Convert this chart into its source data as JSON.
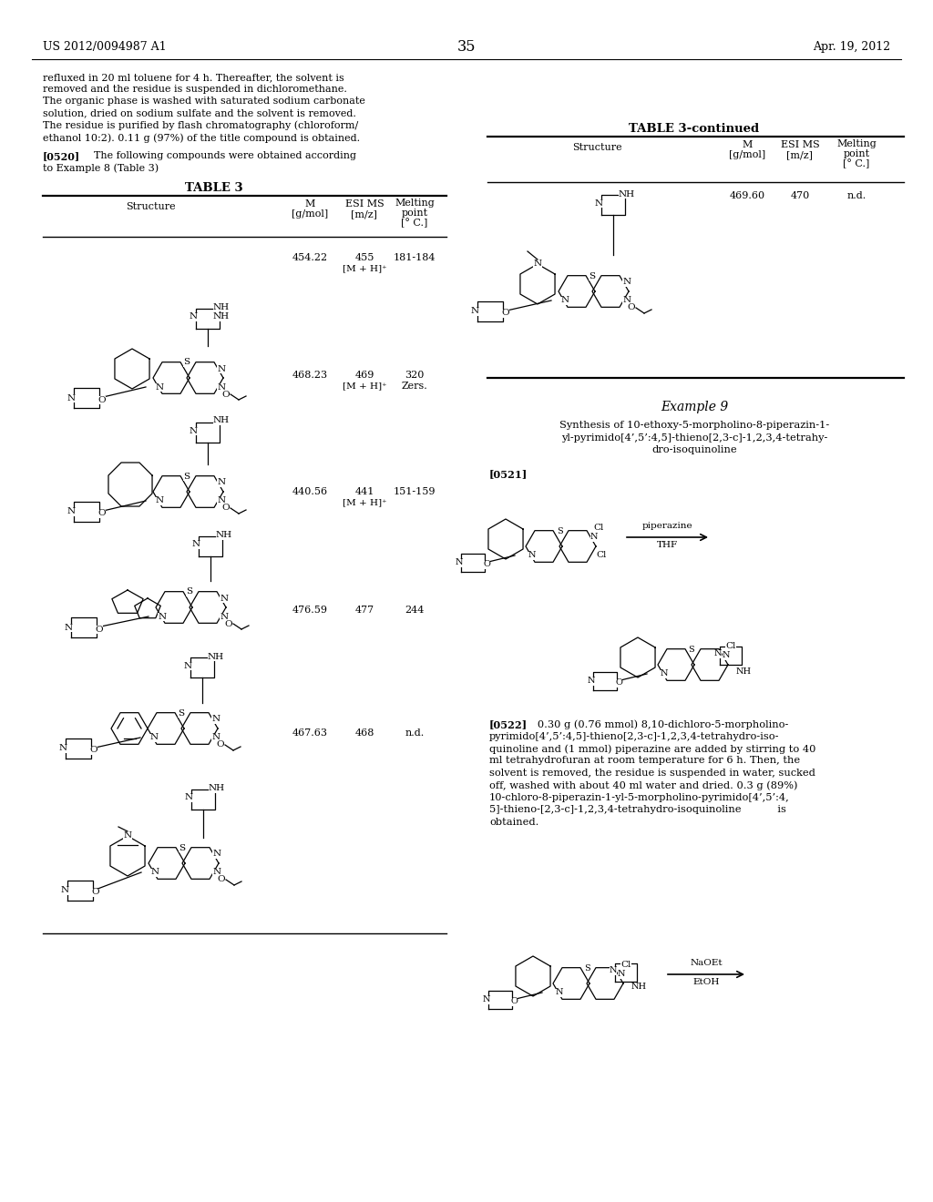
{
  "bg": "#ffffff",
  "header_left": "US 2012/0094987 A1",
  "header_center": "35",
  "header_right": "Apr. 19, 2012",
  "intro_lines": [
    "refluxed in 20 ml toluene for 4 h. Thereafter, the solvent is",
    "removed and the residue is suspended in dichloromethane.",
    "The organic phase is washed with saturated sodium carbonate",
    "solution, dried on sodium sulfate and the solvent is removed.",
    "The residue is purified by flash chromatography (chloroform/",
    "ethanol 10:2). 0.11 g (97%) of the title compound is obtained."
  ],
  "p520_bold": "[0520]",
  "p520_rest": "    The following compounds were obtained according",
  "p520_line2": "to Example 8 (Table 3)",
  "table3_title": "TABLE 3",
  "tbl3_rows": [
    {
      "m": "454.22",
      "esi": "455",
      "esi2": "[M + H]⁺",
      "mp": "181-184"
    },
    {
      "m": "468.23",
      "esi": "469",
      "esi2": "[M + H]⁺",
      "mp": "320\nZers."
    },
    {
      "m": "440.56",
      "esi": "441",
      "esi2": "[M + H]⁺",
      "mp": "151-159"
    },
    {
      "m": "476.59",
      "esi": "477",
      "esi2": "",
      "mp": "244"
    },
    {
      "m": "467.63",
      "esi": "468",
      "esi2": "",
      "mp": "n.d."
    }
  ],
  "table3cont_title": "TABLE 3-continued",
  "tbl3c_rows": [
    {
      "m": "469.60",
      "esi": "470",
      "esi2": "",
      "mp": "n.d."
    }
  ],
  "ex9_title": "Example 9",
  "ex9_lines": [
    "Synthesis of 10-ethoxy-5-morpholino-8-piperazin-1-",
    "yl-pyrimido[4’,5’:4,5]-thieno[2,3-c]-1,2,3,4-tetrahy-",
    "dro-isoquinoline"
  ],
  "p521_bold": "[0521]",
  "rxn1_reagent1": "piperazine",
  "rxn1_reagent2": "THF",
  "p522_bold": "[0522]",
  "p522_lines": [
    "   0.30 g (0.76 mmol) 8,10-dichloro-5-morpholino-",
    "pyrimido[4’,5’:4,5]-thieno[2,3-c]-1,2,3,4-tetrahydro-iso-",
    "quinoline and (1 mmol) piperazine are added by stirring to 40",
    "ml tetrahydrofuran at room temperature for 6 h. Then, the",
    "solvent is removed, the residue is suspended in water, sucked",
    "off, washed with about 40 ml water and dried. 0.3 g (89%)",
    "10-chloro-8-piperazin-1-yl-5-morpholino-pyrimido[4’,5’:4,",
    "5]-thieno-[2,3-c]-1,2,3,4-tetrahydro-isoquinoline           is",
    "obtained."
  ],
  "rxn2_reagent1": "NaOEt",
  "rxn2_reagent2": "EtOH"
}
